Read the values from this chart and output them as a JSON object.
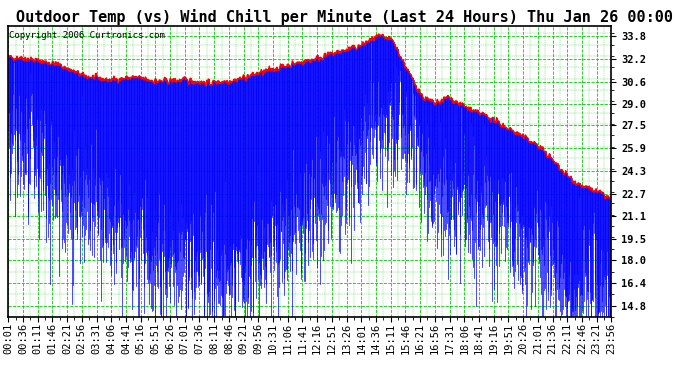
{
  "title": "Outdoor Temp (vs) Wind Chill per Minute (Last 24 Hours) Thu Jan 26 00:00",
  "copyright": "Copyright 2006 Curtronics.com",
  "y_ticks": [
    14.8,
    16.4,
    18.0,
    19.5,
    21.1,
    22.7,
    24.3,
    25.9,
    27.5,
    29.0,
    30.6,
    32.2,
    33.8
  ],
  "y_min": 14.0,
  "y_max": 34.5,
  "x_labels": [
    "00:01",
    "00:36",
    "01:11",
    "01:46",
    "02:21",
    "02:56",
    "03:31",
    "04:06",
    "04:41",
    "05:16",
    "05:51",
    "06:26",
    "07:01",
    "07:36",
    "08:11",
    "08:46",
    "09:21",
    "09:56",
    "10:31",
    "11:06",
    "11:41",
    "12:16",
    "12:51",
    "13:26",
    "14:01",
    "14:36",
    "15:11",
    "15:46",
    "16:21",
    "16:56",
    "17:31",
    "18:06",
    "18:41",
    "19:16",
    "19:51",
    "20:26",
    "21:01",
    "21:36",
    "22:11",
    "22:46",
    "23:21",
    "23:56"
  ],
  "background_color": "#ffffff",
  "plot_bg_color": "#ffffff",
  "grid_color": "#00cc00",
  "temp_color": "#ff0000",
  "windchill_color": "#0000ff",
  "title_fontsize": 11,
  "axis_fontsize": 7.5
}
